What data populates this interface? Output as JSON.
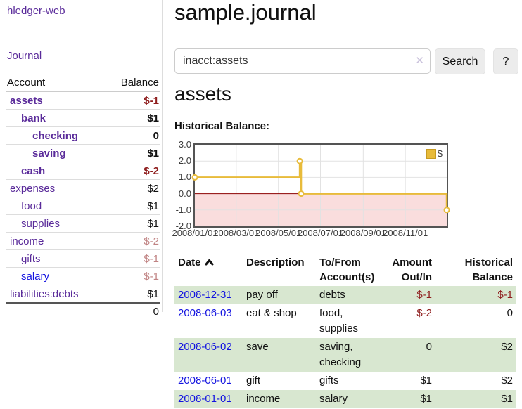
{
  "app": {
    "title": "hledger-web",
    "nav_journal": "Journal"
  },
  "sidebar": {
    "columns": {
      "account": "Account",
      "balance": "Balance"
    },
    "accounts": [
      {
        "name": "assets",
        "level": 0,
        "bold": true,
        "balance": "$-1",
        "neg": "strong"
      },
      {
        "name": "bank",
        "level": 1,
        "bold": true,
        "balance": "$1"
      },
      {
        "name": "checking",
        "level": 2,
        "bold": true,
        "balance": "0"
      },
      {
        "name": "saving",
        "level": 2,
        "bold": true,
        "balance": "$1"
      },
      {
        "name": "cash",
        "level": 1,
        "bold": true,
        "balance": "$-2",
        "neg": "strong"
      },
      {
        "name": "expenses",
        "level": 0,
        "bold": false,
        "balance": "$2"
      },
      {
        "name": "food",
        "level": 1,
        "bold": false,
        "balance": "$1"
      },
      {
        "name": "supplies",
        "level": 1,
        "bold": false,
        "balance": "$1"
      },
      {
        "name": "income",
        "level": 0,
        "bold": false,
        "balance": "$-2",
        "neg": "faded"
      },
      {
        "name": "gifts",
        "level": 1,
        "bold": false,
        "balance": "$-1",
        "neg": "faded"
      },
      {
        "name": "salary",
        "level": 1,
        "bold": false,
        "balance": "$-1",
        "neg": "faded",
        "blue": true
      },
      {
        "name": "liabilities:debts",
        "level": 0,
        "bold": false,
        "balance": "$1"
      }
    ],
    "total": "0"
  },
  "header": {
    "title": "sample.journal"
  },
  "search": {
    "value": "inacct:assets",
    "clear_icon": "✕",
    "button_label": "Search",
    "help_label": "?"
  },
  "account_page": {
    "title": "assets",
    "chart_label": "Historical Balance:"
  },
  "chart_data": {
    "type": "line",
    "subtype": "step-after",
    "legend": "$",
    "legend_position": "top-right",
    "grid": true,
    "x_range_days": [
      0,
      365
    ],
    "y_range": [
      -2,
      3
    ],
    "y_ticks": [
      3.0,
      2.0,
      1.0,
      0.0,
      -1.0,
      -2.0
    ],
    "x_ticks": [
      {
        "day": 0,
        "label": "2008/01/01"
      },
      {
        "day": 60,
        "label": "2008/03/01"
      },
      {
        "day": 121,
        "label": "2008/05/01"
      },
      {
        "day": 182,
        "label": "2008/07/01"
      },
      {
        "day": 244,
        "label": "2008/09/01"
      },
      {
        "day": 305,
        "label": "2008/11/01"
      }
    ],
    "series": [
      {
        "name": "$",
        "color": "#e8bb3a",
        "points": [
          {
            "date": "2008-01-01",
            "day": 0,
            "value": 1
          },
          {
            "date": "2008-06-01",
            "day": 152,
            "value": 2
          },
          {
            "date": "2008-06-03",
            "day": 154,
            "value": 0
          },
          {
            "date": "2008-12-31",
            "day": 365,
            "value": -1
          }
        ]
      }
    ],
    "negative_region": {
      "from": -2,
      "to": 0,
      "fill": "#fadddd",
      "zero_line_color": "#8b0000"
    },
    "colors": {
      "border": "#545454",
      "gridline": "#e2e2e2",
      "marker_fill": "#ffffff"
    }
  },
  "register": {
    "columns": [
      {
        "label": "Date",
        "sorted": "asc"
      },
      {
        "label": "Description"
      },
      {
        "label": "To/From\nAccount(s)"
      },
      {
        "label": "Amount\nOut/In"
      },
      {
        "label": "Historical\nBalance"
      }
    ],
    "rows": [
      {
        "date": "2008-12-31",
        "description": "pay off",
        "accounts": "debts",
        "amount": "$-1",
        "balance": "$-1"
      },
      {
        "date": "2008-06-03",
        "description": "eat & shop",
        "accounts": "food, supplies",
        "amount": "$-2",
        "balance": "0"
      },
      {
        "date": "2008-06-02",
        "description": "save",
        "accounts": "saving, checking",
        "amount": "0",
        "balance": "$2"
      },
      {
        "date": "2008-06-01",
        "description": "gift",
        "accounts": "gifts",
        "amount": "$1",
        "balance": "$2"
      },
      {
        "date": "2008-01-01",
        "description": "income",
        "accounts": "salary",
        "amount": "$1",
        "balance": "$1"
      }
    ]
  },
  "colors": {
    "link_purple": "#5a2b9a",
    "link_blue": "#1414e0",
    "negative_strong": "#8e1d1d",
    "negative_faded": "#c08383",
    "row_green": "#d8e7d0"
  }
}
